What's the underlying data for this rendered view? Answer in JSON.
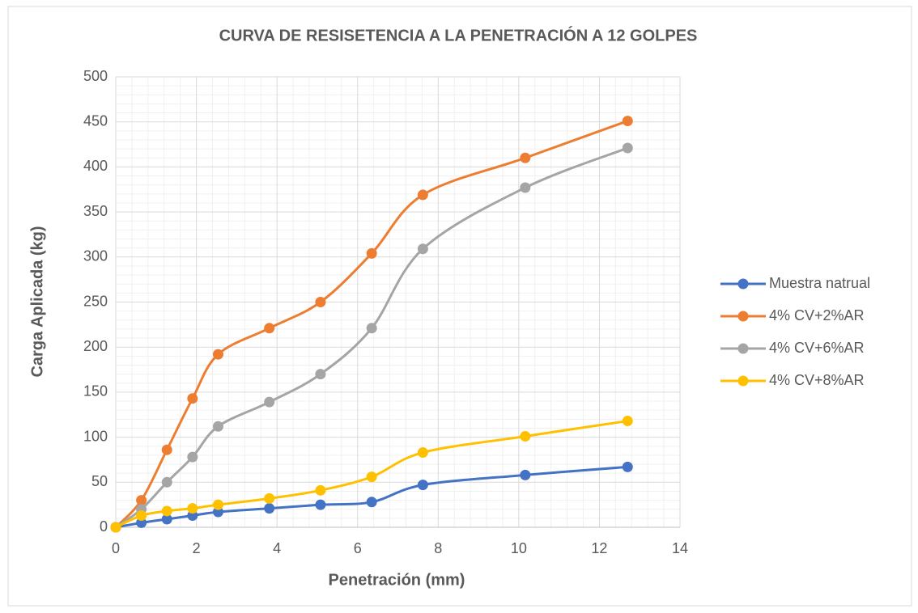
{
  "chart_data": {
    "type": "line",
    "title": "CURVA DE RESISETENCIA A LA PENETRACIÓN A 12 GOLPES",
    "x_label": "Penetración (mm)",
    "y_label": "Carga Aplicada (kg)",
    "x": [
      0,
      0.635,
      1.27,
      1.905,
      2.54,
      3.81,
      5.08,
      6.35,
      7.62,
      10.16,
      12.7
    ],
    "series": [
      {
        "name": "Muestra natrual",
        "color": "#4472c4",
        "values": [
          0,
          5,
          9,
          13,
          17,
          21,
          25,
          28,
          47,
          58,
          67
        ]
      },
      {
        "name": "4% CV+2%AR",
        "color": "#ed7d31",
        "values": [
          0,
          30,
          86,
          143,
          192,
          221,
          250,
          304,
          369,
          410,
          451
        ]
      },
      {
        "name": "4% CV+6%AR",
        "color": "#a5a5a5",
        "values": [
          0,
          20,
          50,
          78,
          112,
          139,
          170,
          221,
          309,
          377,
          421
        ]
      },
      {
        "name": "4% CV+8%AR",
        "color": "#ffc000",
        "values": [
          0,
          13,
          18,
          21,
          25,
          32,
          41,
          56,
          83,
          101,
          118
        ]
      }
    ],
    "xlim": [
      0,
      14
    ],
    "xticks": [
      0,
      2,
      4,
      6,
      8,
      10,
      12,
      14
    ],
    "ylim": [
      0,
      500
    ],
    "yticks": [
      0,
      50,
      100,
      150,
      200,
      250,
      300,
      350,
      400,
      450,
      500
    ],
    "grid": true,
    "minor_grid": true,
    "smooth": true,
    "legend": "right"
  }
}
